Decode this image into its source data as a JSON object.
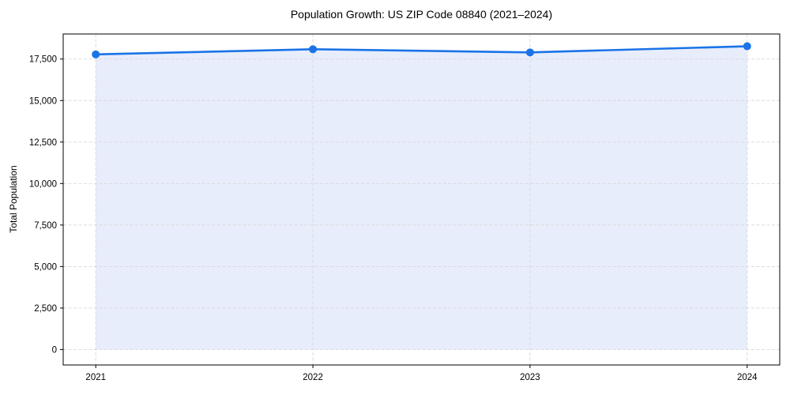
{
  "chart_data": {
    "type": "line",
    "title": "Population Growth: US ZIP Code 08840 (2021–2024)",
    "xlabel": "",
    "ylabel": "Total Population",
    "x": [
      2021,
      2022,
      2023,
      2024
    ],
    "x_tick_labels": [
      "2021",
      "2022",
      "2023",
      "2024"
    ],
    "series": [
      {
        "name": "Total Population",
        "values": [
          17780,
          18090,
          17900,
          18270
        ]
      }
    ],
    "y_ticks": [
      0,
      2500,
      5000,
      7500,
      10000,
      12500,
      15000,
      17500
    ],
    "y_tick_labels": [
      "0",
      "2,500",
      "5,000",
      "7,500",
      "10,000",
      "12,500",
      "15,000",
      "17,500"
    ],
    "xlim": [
      2020.85,
      2024.15
    ],
    "ylim": [
      -930,
      19010
    ],
    "grid": true,
    "grid_style": "dashed",
    "legend": false,
    "area_fill": true,
    "marker": "circle",
    "colors": {
      "line": "#1a73e8",
      "marker": "#1a73e8",
      "fill": "#e7edfb",
      "grid": "#d8d8d8",
      "spine": "#000000",
      "text": "#000000",
      "background": "#ffffff"
    }
  }
}
